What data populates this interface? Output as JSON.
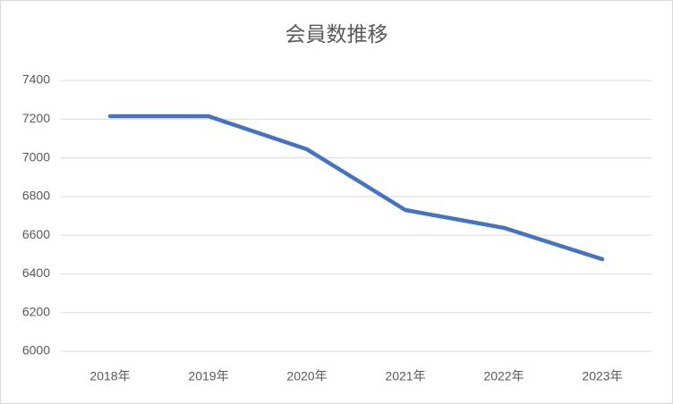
{
  "chart_data": {
    "type": "line",
    "title": "会員数推移",
    "categories": [
      "2018年",
      "2019年",
      "2020年",
      "2021年",
      "2022年",
      "2023年"
    ],
    "values": [
      7215,
      7215,
      7044,
      6730,
      6638,
      6476
    ],
    "color": "#4472c4",
    "ylim": [
      6000,
      7400
    ],
    "yticks": [
      6000,
      6200,
      6400,
      6600,
      6800,
      7000,
      7200,
      7400
    ],
    "grid": true
  }
}
